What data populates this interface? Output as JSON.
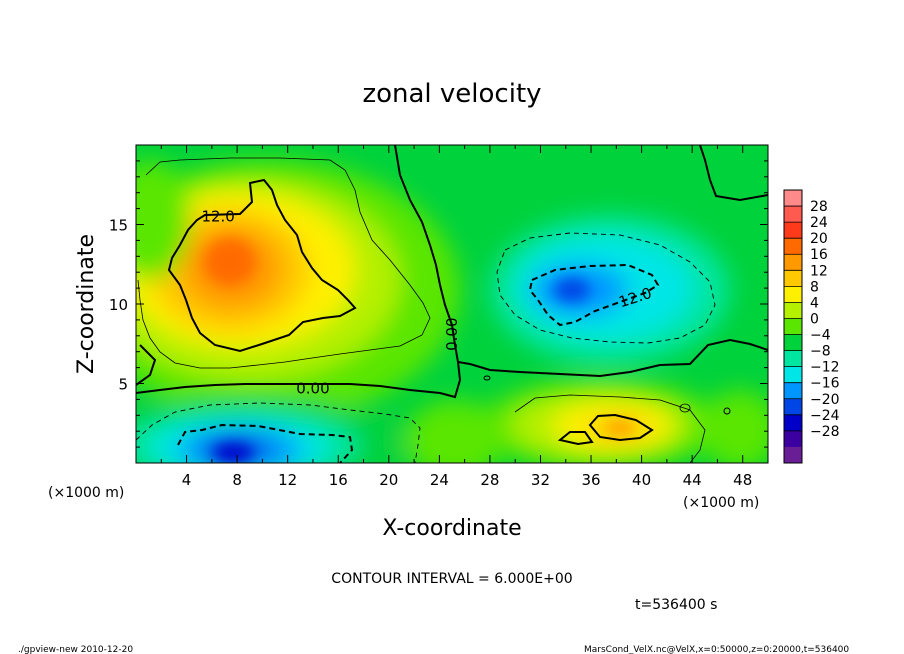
{
  "chart_data": {
    "type": "heatmap",
    "title": "zonal velocity",
    "xlabel": "X-coordinate",
    "ylabel": "Z-coordinate",
    "x_unit_left": "(×1000 m)",
    "x_unit_right": "(×1000 m)",
    "xlim": [
      0,
      50
    ],
    "ylim": [
      0,
      20
    ],
    "x_ticks": [
      4,
      8,
      12,
      16,
      20,
      24,
      28,
      32,
      36,
      40,
      44,
      48
    ],
    "y_ticks": [
      5,
      10,
      15
    ],
    "contour_interval_text": "CONTOUR INTERVAL = 6.000E+00",
    "time_text": "t=536400 s",
    "contour_labels": [
      {
        "text": "12.0",
        "x": 6.5,
        "y": 15.5
      },
      {
        "text": "12.0",
        "x": 39.5,
        "y": 10.4
      },
      {
        "text": "0.00",
        "x": 14.0,
        "y": 4.7
      },
      {
        "text": "0.00",
        "x": 25.0,
        "y": 8.1
      }
    ],
    "colorbar": {
      "labels": [
        "28",
        "24",
        "20",
        "16",
        "12",
        "8",
        "4",
        "0",
        "−4",
        "−8",
        "−12",
        "−16",
        "−20",
        "−24",
        "−28"
      ],
      "colors": [
        "#ff8a8a",
        "#ff5a50",
        "#ff3a1a",
        "#ff6a00",
        "#ff9900",
        "#ffc800",
        "#fff000",
        "#b4f000",
        "#5ae600",
        "#00d23c",
        "#00e6a0",
        "#00e6e6",
        "#0096ff",
        "#0046e6",
        "#0000c8",
        "#3c00a0",
        "#6a1e96"
      ]
    },
    "field_features": [
      {
        "kind": "max",
        "x": 8.0,
        "y": 12.5,
        "value": 20
      },
      {
        "kind": "max",
        "x": 38.0,
        "y": 2.3,
        "value": 16
      },
      {
        "kind": "min",
        "x": 35.0,
        "y": 11.0,
        "value": -16
      },
      {
        "kind": "min",
        "x": 9.0,
        "y": 1.5,
        "value": -20
      }
    ]
  },
  "footer": {
    "left": "./gpview-new   2010-12-20",
    "right": "MarsCond_VelX.nc@VelX,x=0:50000,z=0:20000,t=536400"
  }
}
